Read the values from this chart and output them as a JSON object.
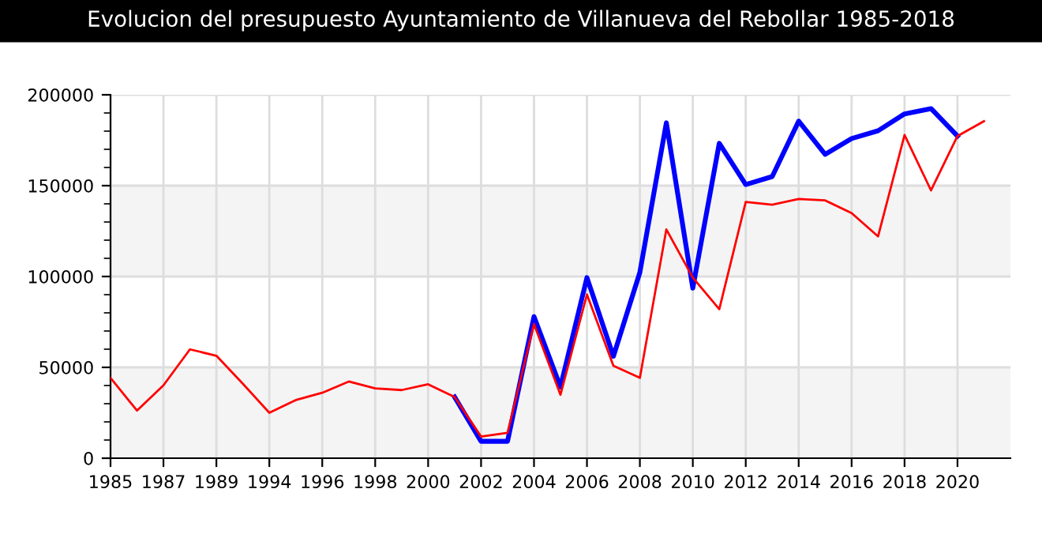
{
  "chart_data": {
    "type": "line",
    "title": "Evolucion del presupuesto Ayuntamiento de Villanueva del Rebollar 1985-2018",
    "categories": [
      "1985",
      null,
      "1987",
      null,
      "1989",
      null,
      "1994",
      null,
      "1996",
      null,
      "1998",
      null,
      "2000",
      null,
      "2002",
      null,
      "2004",
      null,
      "2006",
      null,
      "2008",
      null,
      "2010",
      null,
      "2012",
      null,
      "2014",
      null,
      "2016",
      null,
      "2018",
      null,
      "2020",
      null
    ],
    "series": [
      {
        "color": "#0000ff",
        "values": [
          null,
          null,
          null,
          null,
          null,
          null,
          null,
          null,
          null,
          null,
          null,
          null,
          null,
          33700,
          9300,
          9300,
          77900,
          39200,
          99400,
          56100,
          102300,
          184600,
          93600,
          173300,
          150600,
          155000,
          185500,
          167200,
          175900,
          180200,
          189500,
          192400,
          177300,
          null
        ]
      },
      {
        "color": "#ff0000",
        "values": [
          44200,
          26200,
          40100,
          59900,
          56400,
          41000,
          25000,
          32000,
          36000,
          42200,
          38400,
          37500,
          40700,
          33700,
          11900,
          14000,
          73800,
          34900,
          90100,
          50900,
          44200,
          125900,
          99400,
          82000,
          141000,
          139500,
          142700,
          141900,
          134900,
          122100,
          177900,
          147400,
          177300,
          185500
        ]
      }
    ],
    "ylim": [
      0,
      200000
    ],
    "yticks": [
      0,
      50000,
      100000,
      150000,
      200000
    ],
    "grid": true,
    "bands": [
      {
        "axis": "y",
        "from": 0,
        "to": 50000,
        "color": "#f4f4f4"
      },
      {
        "axis": "y",
        "from": 100000,
        "to": 150000,
        "color": "#f4f4f4"
      }
    ]
  }
}
